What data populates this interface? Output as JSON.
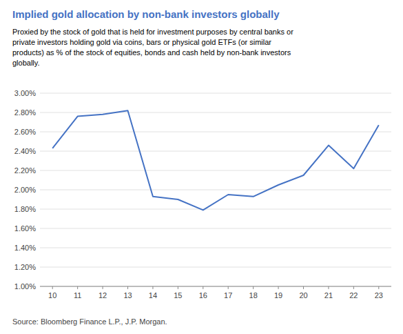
{
  "chart_data": {
    "type": "line",
    "title": "Implied gold allocation by non-bank investors globally",
    "subtitle": "Proxied by the stock of gold that is held for investment purposes by central banks or\nprivate investors holding gold via coins, bars or physical gold ETFs (or similar\nproducts) as % of the stock of equities, bonds and cash held by non-bank investors\nglobally.",
    "source": "Source: Bloomberg Finance L.P., J.P. Morgan.",
    "x": [
      10,
      11,
      12,
      13,
      14,
      15,
      16,
      17,
      18,
      19,
      20,
      21,
      22,
      23
    ],
    "values": [
      2.43,
      2.76,
      2.78,
      2.82,
      1.93,
      1.9,
      1.79,
      1.95,
      1.93,
      2.05,
      2.15,
      2.46,
      2.22,
      2.67
    ],
    "color": "#4472C4",
    "xlim": [
      9.5,
      23.5
    ],
    "xticks": [
      10,
      11,
      12,
      13,
      14,
      15,
      16,
      17,
      18,
      19,
      20,
      21,
      22,
      23
    ],
    "ylim": [
      1.0,
      3.0
    ],
    "yticks": [
      {
        "value": 1.0,
        "label": "1.00%"
      },
      {
        "value": 1.2,
        "label": "1.20%"
      },
      {
        "value": 1.4,
        "label": "1.40%"
      },
      {
        "value": 1.6,
        "label": "1.60%"
      },
      {
        "value": 1.8,
        "label": "1.80%"
      },
      {
        "value": 2.0,
        "label": "2.00%"
      },
      {
        "value": 2.2,
        "label": "2.20%"
      },
      {
        "value": 2.4,
        "label": "2.40%"
      },
      {
        "value": 2.6,
        "label": "2.60%"
      },
      {
        "value": 2.8,
        "label": "2.80%"
      },
      {
        "value": 3.0,
        "label": "3.00%"
      }
    ],
    "grid": true
  }
}
